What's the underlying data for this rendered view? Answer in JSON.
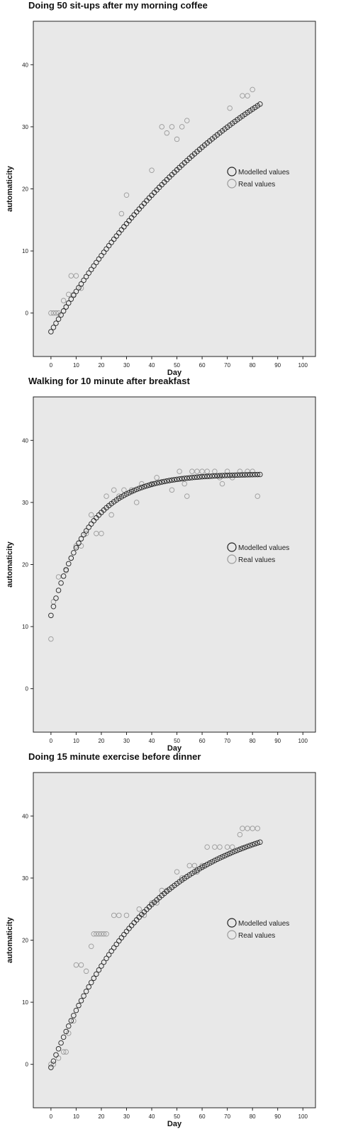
{
  "chart_data": [
    {
      "type": "scatter",
      "title": "Doing 50 sit-ups after my morning coffee",
      "xlabel": "Day",
      "ylabel": "automaticity",
      "xlim": [
        -7,
        105
      ],
      "ylim": [
        -7,
        47
      ],
      "xticks": [
        0,
        10,
        20,
        30,
        40,
        50,
        60,
        70,
        80,
        90,
        100
      ],
      "yticks": [
        0,
        10,
        20,
        30,
        40
      ],
      "grid": false,
      "legend_position": "right",
      "model": {
        "y0": -3,
        "A": 59.6,
        "k": 0.0115,
        "x_range": [
          0,
          83
        ]
      },
      "series": [
        {
          "name": "Modelled values",
          "color": "#222222",
          "kind": "model"
        },
        {
          "name": "Real values",
          "color": "#9a9a9a",
          "kind": "observed",
          "points": [
            [
              0,
              0
            ],
            [
              1,
              0
            ],
            [
              2,
              0
            ],
            [
              3,
              0
            ],
            [
              5,
              2
            ],
            [
              6,
              1
            ],
            [
              7,
              3
            ],
            [
              8,
              6
            ],
            [
              9,
              3
            ],
            [
              10,
              6
            ],
            [
              12,
              4
            ],
            [
              28,
              16
            ],
            [
              30,
              19
            ],
            [
              40,
              23
            ],
            [
              44,
              30
            ],
            [
              46,
              29
            ],
            [
              48,
              30
            ],
            [
              50,
              28
            ],
            [
              52,
              30
            ],
            [
              54,
              31
            ],
            [
              71,
              33
            ],
            [
              76,
              35
            ],
            [
              78,
              35
            ],
            [
              80,
              36
            ]
          ]
        }
      ]
    },
    {
      "type": "scatter",
      "title": "Walking for 10 minute after breakfast",
      "xlabel": "Day",
      "ylabel": "automaticity",
      "xlim": [
        -7,
        105
      ],
      "ylim": [
        -7,
        47
      ],
      "xticks": [
        0,
        10,
        20,
        30,
        40,
        50,
        60,
        70,
        80,
        90,
        100
      ],
      "yticks": [
        0,
        10,
        20,
        30,
        40
      ],
      "grid": false,
      "legend_position": "right",
      "model": {
        "y0": 11.8,
        "A": 22.8,
        "k": 0.065,
        "x_range": [
          0,
          83
        ]
      },
      "series": [
        {
          "name": "Modelled values",
          "color": "#222222",
          "kind": "model"
        },
        {
          "name": "Real values",
          "color": "#9a9a9a",
          "kind": "observed",
          "points": [
            [
              0,
              8
            ],
            [
              1,
              14
            ],
            [
              3,
              18
            ],
            [
              6,
              19
            ],
            [
              8,
              21
            ],
            [
              10,
              23
            ],
            [
              12,
              23
            ],
            [
              14,
              25
            ],
            [
              16,
              28
            ],
            [
              18,
              25
            ],
            [
              20,
              25
            ],
            [
              22,
              31
            ],
            [
              24,
              28
            ],
            [
              25,
              32
            ],
            [
              27,
              31
            ],
            [
              29,
              32
            ],
            [
              32,
              32
            ],
            [
              34,
              30
            ],
            [
              36,
              33
            ],
            [
              40,
              33
            ],
            [
              42,
              34
            ],
            [
              48,
              32
            ],
            [
              51,
              35
            ],
            [
              53,
              33
            ],
            [
              54,
              31
            ],
            [
              56,
              35
            ],
            [
              58,
              35
            ],
            [
              60,
              35
            ],
            [
              62,
              35
            ],
            [
              65,
              35
            ],
            [
              67,
              34
            ],
            [
              68,
              33
            ],
            [
              70,
              35
            ],
            [
              72,
              34
            ],
            [
              75,
              35
            ],
            [
              78,
              35
            ],
            [
              80,
              35
            ],
            [
              82,
              31
            ]
          ]
        }
      ]
    },
    {
      "type": "scatter",
      "title": "Doing 15 minute exercise before dinner",
      "xlabel": "Day",
      "ylabel": "automaticity",
      "xlim": [
        -7,
        105
      ],
      "ylim": [
        -7,
        47
      ],
      "xticks": [
        0,
        10,
        20,
        30,
        40,
        50,
        60,
        70,
        80,
        90,
        100
      ],
      "yticks": [
        0,
        10,
        20,
        30,
        40
      ],
      "grid": false,
      "legend_position": "right",
      "model": {
        "y0": -0.5,
        "A": 41.5,
        "k": 0.025,
        "x_range": [
          0,
          83
        ]
      },
      "series": [
        {
          "name": "Modelled values",
          "color": "#222222",
          "kind": "model"
        },
        {
          "name": "Real values",
          "color": "#9a9a9a",
          "kind": "observed",
          "points": [
            [
              0,
              0
            ],
            [
              1,
              0
            ],
            [
              3,
              1
            ],
            [
              5,
              2
            ],
            [
              6,
              2
            ],
            [
              7,
              5
            ],
            [
              9,
              7
            ],
            [
              10,
              16
            ],
            [
              12,
              16
            ],
            [
              14,
              15
            ],
            [
              16,
              19
            ],
            [
              17,
              21
            ],
            [
              18,
              21
            ],
            [
              19,
              21
            ],
            [
              20,
              21
            ],
            [
              21,
              21
            ],
            [
              22,
              21
            ],
            [
              25,
              24
            ],
            [
              27,
              24
            ],
            [
              30,
              24
            ],
            [
              35,
              25
            ],
            [
              37,
              24
            ],
            [
              40,
              26
            ],
            [
              42,
              26
            ],
            [
              44,
              28
            ],
            [
              46,
              28
            ],
            [
              50,
              31
            ],
            [
              52,
              30
            ],
            [
              55,
              32
            ],
            [
              57,
              32
            ],
            [
              58,
              31
            ],
            [
              60,
              32
            ],
            [
              62,
              35
            ],
            [
              65,
              35
            ],
            [
              67,
              35
            ],
            [
              70,
              35
            ],
            [
              72,
              35
            ],
            [
              75,
              37
            ],
            [
              76,
              38
            ],
            [
              78,
              38
            ],
            [
              80,
              38
            ],
            [
              82,
              38
            ]
          ]
        }
      ]
    }
  ]
}
